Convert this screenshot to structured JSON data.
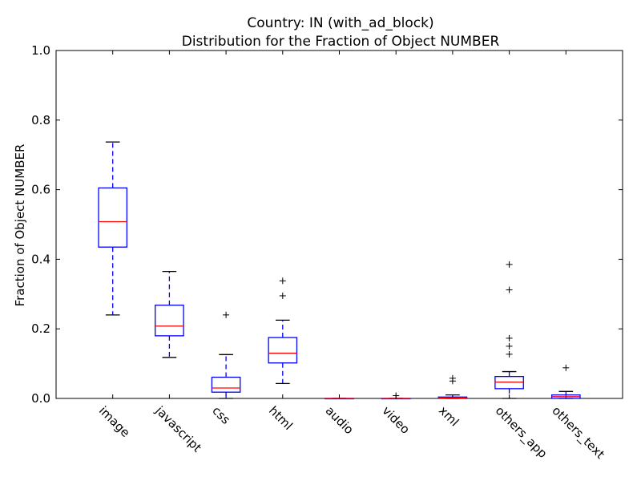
{
  "chart_data": {
    "type": "box",
    "title": "Country: IN  (with_ad_block)",
    "subtitle": "Distribution for the Fraction of Object NUMBER",
    "xlabel": "",
    "ylabel": "Fraction of Object NUMBER",
    "ylim": [
      0,
      1.0
    ],
    "yticks": [
      "0.0",
      "0.2",
      "0.4",
      "0.6",
      "0.8",
      "1.0"
    ],
    "grid": false,
    "colors": {
      "box": "#0000ff",
      "median": "#ff0000",
      "whisker": "#0000ff",
      "cap": "#000000",
      "flier": "#000000"
    },
    "categories": [
      "image",
      "javascript",
      "css",
      "html",
      "audio",
      "video",
      "xml",
      "others_app",
      "others_text"
    ],
    "boxes": [
      {
        "label": "image",
        "whislo": 0.24,
        "q1": 0.435,
        "med": 0.508,
        "q3": 0.605,
        "whishi": 0.737,
        "fliers": []
      },
      {
        "label": "javascript",
        "whislo": 0.118,
        "q1": 0.18,
        "med": 0.208,
        "q3": 0.268,
        "whishi": 0.365,
        "fliers": []
      },
      {
        "label": "css",
        "whislo": 0.0,
        "q1": 0.018,
        "med": 0.03,
        "q3": 0.061,
        "whishi": 0.126,
        "fliers": [
          0.24
        ]
      },
      {
        "label": "html",
        "whislo": 0.043,
        "q1": 0.102,
        "med": 0.13,
        "q3": 0.175,
        "whishi": 0.225,
        "fliers": [
          0.295,
          0.338
        ]
      },
      {
        "label": "audio",
        "whislo": 0.0,
        "q1": 0.0,
        "med": 0.0,
        "q3": 0.0,
        "whishi": 0.0,
        "fliers": []
      },
      {
        "label": "video",
        "whislo": 0.0,
        "q1": 0.0,
        "med": 0.0,
        "q3": 0.0,
        "whishi": 0.0,
        "fliers": [
          0.008
        ]
      },
      {
        "label": "xml",
        "whislo": 0.0,
        "q1": 0.0,
        "med": 0.001,
        "q3": 0.004,
        "whishi": 0.01,
        "fliers": [
          0.05,
          0.058
        ]
      },
      {
        "label": "others_app",
        "whislo": 0.0,
        "q1": 0.028,
        "med": 0.047,
        "q3": 0.063,
        "whishi": 0.077,
        "fliers": [
          0.127,
          0.15,
          0.173,
          0.312,
          0.385
        ]
      },
      {
        "label": "others_text",
        "whislo": 0.0,
        "q1": 0.0,
        "med": 0.005,
        "q3": 0.01,
        "whishi": 0.02,
        "fliers": [
          0.088
        ]
      }
    ]
  }
}
